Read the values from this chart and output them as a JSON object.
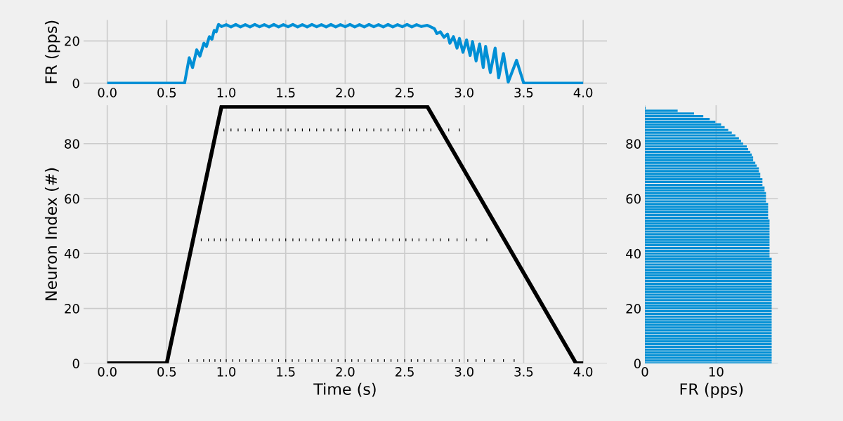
{
  "chart_data": [
    {
      "type": "line",
      "ylabel": "FR (pps)",
      "color": "#008fd5",
      "grid": true,
      "x": [
        0,
        0.65,
        0.689,
        0.717,
        0.752,
        0.779,
        0.812,
        0.834,
        0.858,
        0.88,
        0.899,
        0.916,
        0.935,
        0.96,
        1.0,
        1.04,
        1.08,
        1.12,
        1.16,
        1.2,
        1.24,
        1.28,
        1.32,
        1.36,
        1.4,
        1.44,
        1.48,
        1.52,
        1.56,
        1.6,
        1.64,
        1.68,
        1.72,
        1.76,
        1.8,
        1.84,
        1.88,
        1.92,
        1.96,
        2.0,
        2.04,
        2.08,
        2.12,
        2.16,
        2.2,
        2.24,
        2.28,
        2.32,
        2.36,
        2.4,
        2.44,
        2.48,
        2.52,
        2.56,
        2.6,
        2.64,
        2.69,
        2.72,
        2.75,
        2.77,
        2.8,
        2.83,
        2.86,
        2.88,
        2.91,
        2.94,
        2.96,
        2.99,
        3.02,
        3.05,
        3.07,
        3.1,
        3.13,
        3.16,
        3.18,
        3.22,
        3.26,
        3.29,
        3.33,
        3.37,
        3.44,
        3.5,
        4.0
      ],
      "values": [
        0,
        0,
        12,
        7.4,
        15.8,
        12.8,
        18.9,
        17.4,
        22,
        20.8,
        25,
        24.3,
        27.8,
        26.8,
        27.7,
        26.6,
        27.8,
        26.6,
        27.7,
        26.6,
        27.8,
        26.7,
        27.7,
        26.6,
        27.8,
        26.6,
        27.7,
        26.7,
        27.8,
        26.6,
        27.7,
        26.6,
        27.8,
        26.7,
        27.7,
        26.6,
        27.8,
        26.6,
        27.7,
        26.7,
        27.8,
        26.6,
        27.7,
        26.6,
        27.8,
        26.7,
        27.7,
        26.6,
        27.8,
        26.6,
        27.7,
        26.7,
        27.8,
        26.6,
        27.7,
        26.8,
        27.4,
        26.6,
        25.8,
        23.5,
        24.3,
        21.7,
        23.2,
        18.9,
        22,
        16.6,
        21.2,
        14.6,
        20.5,
        13.1,
        19.7,
        10.5,
        18.6,
        7.4,
        17.4,
        5,
        16.6,
        2.5,
        14,
        0.5,
        10.8,
        0,
        0
      ],
      "xlim": [
        -0.2,
        4.2
      ],
      "ylim": [
        -0.5,
        30
      ],
      "xticks": [
        {
          "value": 0,
          "label": "0.0"
        },
        {
          "value": 0.5,
          "label": "0.5"
        },
        {
          "value": 1,
          "label": "1.0"
        },
        {
          "value": 1.5,
          "label": "1.5"
        },
        {
          "value": 2,
          "label": "2.0"
        },
        {
          "value": 2.5,
          "label": "2.5"
        },
        {
          "value": 3,
          "label": "3.0"
        },
        {
          "value": 3.5,
          "label": "3.5"
        },
        {
          "value": 4,
          "label": "4.0"
        }
      ],
      "yticks": [
        0,
        20
      ]
    },
    {
      "type": "bar",
      "xlabel": "Time (s)",
      "ylabel": "Neuron Index (#)",
      "grid": true,
      "series": [
        {
          "type": "bar",
          "color": "#000000",
          "x": [
            0.685,
            0.755,
            0.81,
            0.86,
            0.905,
            0.95,
            1.0,
            1.055,
            1.11,
            1.165,
            1.22,
            1.275,
            1.33,
            1.385,
            1.44,
            1.5,
            1.555,
            1.61,
            1.665,
            1.72,
            1.775,
            1.83,
            1.885,
            1.94,
            2.0,
            2.055,
            2.11,
            2.165,
            2.22,
            2.275,
            2.33,
            2.385,
            2.44,
            2.5,
            2.555,
            2.61,
            2.665,
            2.72,
            2.78,
            2.84,
            2.9,
            2.96,
            3.03,
            3.1,
            3.17,
            3.25,
            3.33,
            3.42
          ],
          "base": [
            0.5,
            0.5,
            0.5,
            0.5,
            0.5,
            0.5,
            0.5,
            0.5,
            0.5,
            0.5,
            0.5,
            0.5,
            0.5,
            0.5,
            0.5,
            0.5,
            0.5,
            0.5,
            0.5,
            0.5,
            0.5,
            0.5,
            0.5,
            0.5,
            0.5,
            0.5,
            0.5,
            0.5,
            0.5,
            0.5,
            0.5,
            0.5,
            0.5,
            0.5,
            0.5,
            0.5,
            0.5,
            0.5,
            0.5,
            0.5,
            0.5,
            0.5,
            0.5,
            0.5,
            0.5,
            0.5,
            0.5,
            0.5
          ],
          "values": [
            1,
            1,
            1,
            1,
            1,
            1,
            1,
            1,
            1,
            1,
            1,
            1,
            1,
            1,
            1,
            1,
            1,
            1,
            1,
            1,
            1,
            1,
            1,
            1,
            1,
            1,
            1,
            1,
            1,
            1,
            1,
            1,
            1,
            1,
            1,
            1,
            1,
            1,
            1,
            1,
            1,
            1,
            1,
            1,
            1,
            1,
            1,
            1
          ]
        },
        {
          "type": "bar",
          "color": "#000000",
          "x": [
            0.79,
            0.85,
            0.9,
            0.95,
            1.0,
            1.055,
            1.11,
            1.165,
            1.22,
            1.28,
            1.335,
            1.39,
            1.445,
            1.5,
            1.56,
            1.615,
            1.67,
            1.725,
            1.78,
            1.84,
            1.895,
            1.95,
            2.005,
            2.06,
            2.12,
            2.175,
            2.23,
            2.285,
            2.34,
            2.4,
            2.455,
            2.51,
            2.565,
            2.62,
            2.68,
            2.74,
            2.8,
            2.87,
            2.94,
            3.02,
            3.1,
            3.19
          ],
          "base": [
            44.5,
            44.5,
            44.5,
            44.5,
            44.5,
            44.5,
            44.5,
            44.5,
            44.5,
            44.5,
            44.5,
            44.5,
            44.5,
            44.5,
            44.5,
            44.5,
            44.5,
            44.5,
            44.5,
            44.5,
            44.5,
            44.5,
            44.5,
            44.5,
            44.5,
            44.5,
            44.5,
            44.5,
            44.5,
            44.5,
            44.5,
            44.5,
            44.5,
            44.5,
            44.5,
            44.5,
            44.5,
            44.5,
            44.5,
            44.5,
            44.5,
            44.5
          ],
          "values": [
            1,
            1,
            1,
            1,
            1,
            1,
            1,
            1,
            1,
            1,
            1,
            1,
            1,
            1,
            1,
            1,
            1,
            1,
            1,
            1,
            1,
            1,
            1,
            1,
            1,
            1,
            1,
            1,
            1,
            1,
            1,
            1,
            1,
            1,
            1,
            1,
            1,
            1,
            1,
            1,
            1,
            1
          ]
        },
        {
          "type": "bar",
          "color": "#000000",
          "x": [
            0.98,
            1.04,
            1.1,
            1.16,
            1.22,
            1.28,
            1.34,
            1.4,
            1.46,
            1.52,
            1.58,
            1.64,
            1.7,
            1.76,
            1.82,
            1.88,
            1.94,
            2.0,
            2.06,
            2.12,
            2.18,
            2.24,
            2.3,
            2.36,
            2.42,
            2.48,
            2.54,
            2.6,
            2.66,
            2.72,
            2.87,
            2.96
          ],
          "base": [
            84.5,
            84.5,
            84.5,
            84.5,
            84.5,
            84.5,
            84.5,
            84.5,
            84.5,
            84.5,
            84.5,
            84.5,
            84.5,
            84.5,
            84.5,
            84.5,
            84.5,
            84.5,
            84.5,
            84.5,
            84.5,
            84.5,
            84.5,
            84.5,
            84.5,
            84.5,
            84.5,
            84.5,
            84.5,
            84.5,
            84.5,
            84.5
          ],
          "values": [
            1,
            1,
            1,
            1,
            1,
            1,
            1,
            1,
            1,
            1,
            1,
            1,
            1,
            1,
            1,
            1,
            1,
            1,
            1,
            1,
            1,
            1,
            1,
            1,
            1,
            1,
            1,
            1,
            1,
            1,
            1,
            1
          ]
        },
        {
          "type": "line",
          "color": "#000000",
          "x": [
            0,
            0.5,
            0.96,
            2.69,
            3.94,
            4.0
          ],
          "values": [
            0,
            0,
            93.5,
            93.5,
            0,
            0
          ]
        }
      ],
      "xlim": [
        -0.2,
        4.2
      ],
      "ylim": [
        0,
        94
      ],
      "xticks": [
        {
          "value": 0,
          "label": "0.0"
        },
        {
          "value": 0.5,
          "label": "0.5"
        },
        {
          "value": 1,
          "label": "1.0"
        },
        {
          "value": 1.5,
          "label": "1.5"
        },
        {
          "value": 2,
          "label": "2.0"
        },
        {
          "value": 2.5,
          "label": "2.5"
        },
        {
          "value": 3,
          "label": "3.0"
        },
        {
          "value": 3.5,
          "label": "3.5"
        },
        {
          "value": 4,
          "label": "4.0"
        }
      ],
      "yticks": [
        0,
        20,
        40,
        60,
        80
      ]
    },
    {
      "type": "bar",
      "orientation": "horizontal",
      "xlabel": "FR (pps)",
      "color": "#008fd5",
      "grid": true,
      "x": [
        0,
        1,
        2,
        3,
        4,
        5,
        6,
        7,
        8,
        9,
        10,
        11,
        12,
        13,
        14,
        15,
        16,
        17,
        18,
        19,
        20,
        21,
        22,
        23,
        24,
        25,
        26,
        27,
        28,
        29,
        30,
        31,
        32,
        33,
        34,
        35,
        36,
        37,
        38,
        39,
        40,
        41,
        42,
        43,
        44,
        45,
        46,
        47,
        48,
        49,
        50,
        51,
        52,
        53,
        54,
        55,
        56,
        57,
        58,
        59,
        60,
        61,
        62,
        63,
        64,
        65,
        66,
        67,
        68,
        69,
        70,
        71,
        72,
        73,
        74,
        75,
        76,
        77,
        78,
        79,
        80,
        81,
        82,
        83,
        84,
        85,
        86,
        87,
        88,
        89,
        90,
        91,
        92,
        93
      ],
      "values": [
        17.8,
        17.8,
        17.8,
        17.8,
        17.8,
        17.8,
        17.8,
        17.8,
        17.8,
        17.8,
        17.8,
        17.8,
        17.8,
        17.8,
        17.8,
        17.8,
        17.8,
        17.8,
        17.8,
        17.8,
        17.8,
        17.8,
        17.8,
        17.8,
        17.8,
        17.8,
        17.8,
        17.8,
        17.8,
        17.8,
        17.8,
        17.8,
        17.8,
        17.8,
        17.8,
        17.8,
        17.8,
        17.8,
        17.8,
        17.5,
        17.5,
        17.5,
        17.5,
        17.5,
        17.5,
        17.5,
        17.5,
        17.5,
        17.5,
        17.5,
        17.5,
        17.5,
        17.5,
        17.3,
        17.3,
        17.3,
        17.3,
        17.3,
        17.3,
        17,
        17,
        17,
        17,
        16.8,
        16.8,
        16.5,
        16.5,
        16.5,
        16.2,
        16.2,
        16,
        16,
        15.7,
        15.5,
        15.2,
        15.2,
        15,
        14.8,
        14.5,
        14.3,
        13.8,
        13.5,
        13.2,
        12.7,
        12.2,
        11.7,
        11.2,
        10.7,
        9.9,
        9.1,
        8.2,
        6.9,
        4.6,
        0.1
      ],
      "xlim": [
        0,
        18.7
      ],
      "ylim": [
        0,
        94
      ],
      "xticks": [
        0,
        10
      ],
      "yticks": [
        0,
        20,
        40,
        60,
        80
      ]
    }
  ]
}
